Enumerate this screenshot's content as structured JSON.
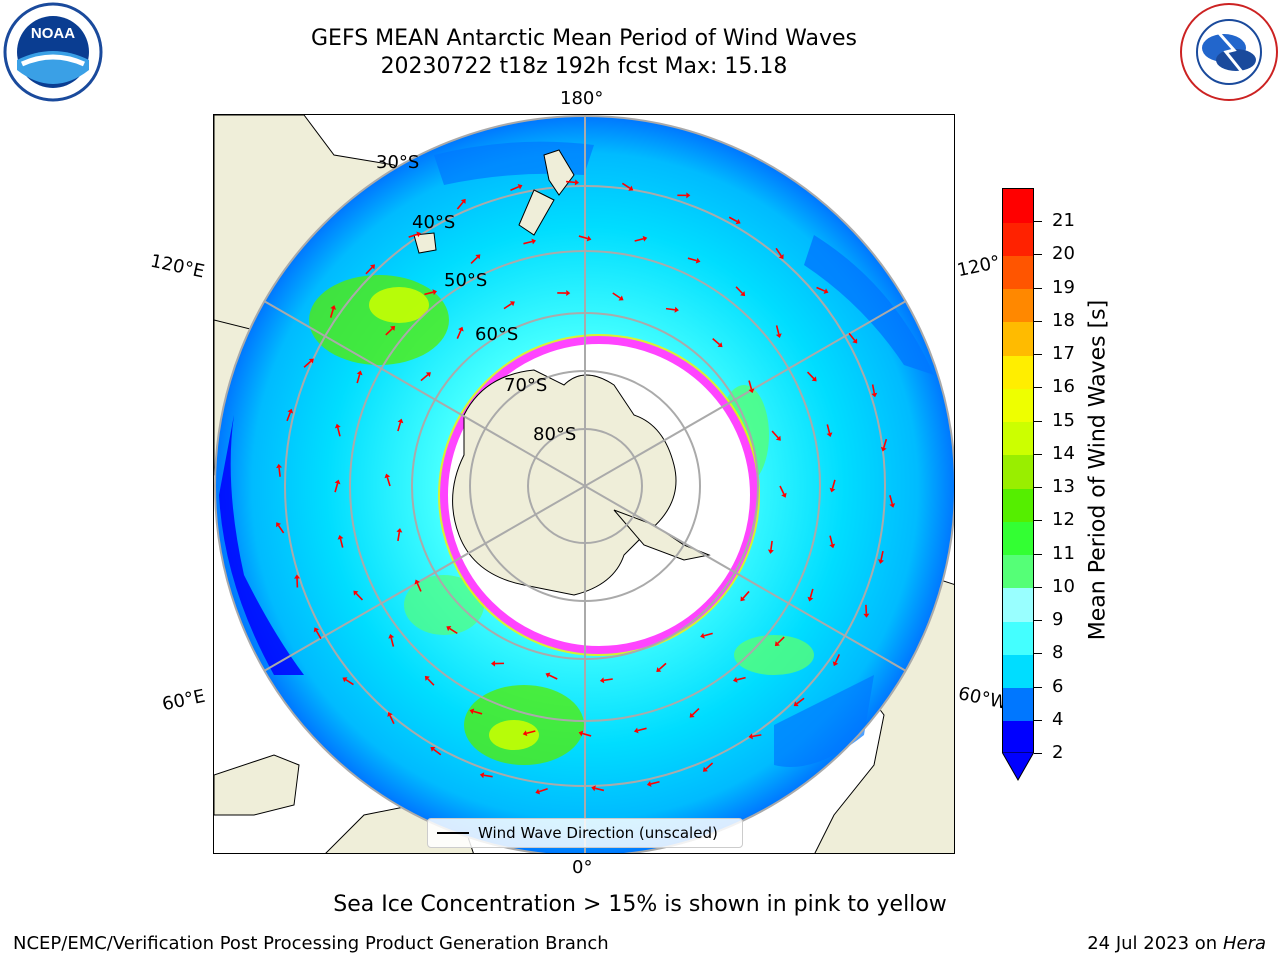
{
  "title": {
    "line1": "GEFS MEAN Antarctic Mean Period of Wind Waves",
    "line2": "20230722 t18z 192h fcst   Max: 15.18"
  },
  "logos": {
    "left": "NOAA",
    "right": "NATIONAL WEATHER SERVICE"
  },
  "longitude_labels": {
    "top": "180°",
    "bottom": "0°",
    "upper_left": "120°E",
    "upper_right": "120°",
    "lower_left": "60°E",
    "lower_right": "60°W"
  },
  "latitude_labels": [
    "30°S",
    "40°S",
    "50°S",
    "60°S",
    "70°S",
    "80°S"
  ],
  "legend": {
    "label": "Wind Wave Direction (unscaled)"
  },
  "colorbar": {
    "label": "Mean Period of Wind Waves [s]",
    "ticks": [
      "2",
      "4",
      "6",
      "8",
      "9",
      "10",
      "11",
      "12",
      "13",
      "14",
      "15",
      "16",
      "17",
      "18",
      "19",
      "20",
      "21"
    ],
    "colors": [
      "#0000ff",
      "#0077ff",
      "#00ddff",
      "#44ffff",
      "#99ffff",
      "#55ff77",
      "#33ff33",
      "#55ee00",
      "#99ee00",
      "#ccff00",
      "#eeff00",
      "#ffee00",
      "#ffbb00",
      "#ff8800",
      "#ff5500",
      "#ff2200",
      "#ff0000"
    ]
  },
  "caption": "Sea Ice Concentration > 15% is shown in pink to yellow",
  "credit": "NCEP/EMC/Verification Post Processing Product Generation Branch",
  "date": {
    "text": "24 Jul 2023 on ",
    "machine": "Hera"
  }
}
